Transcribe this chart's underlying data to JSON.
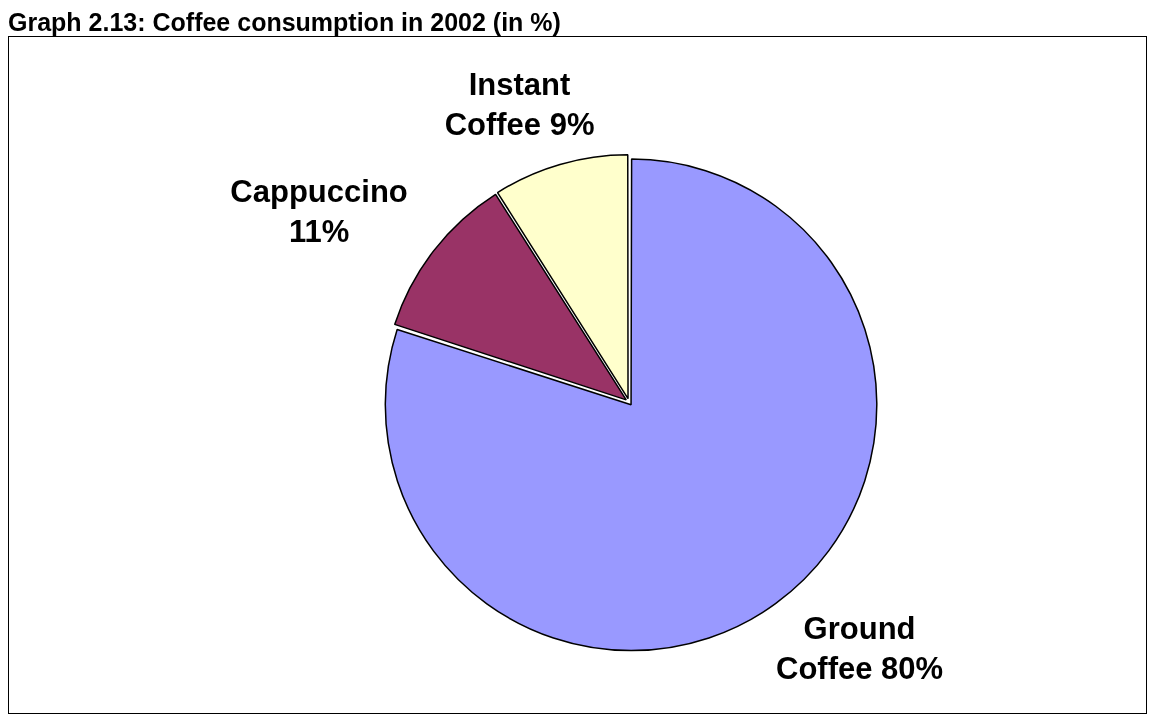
{
  "chart_data": {
    "type": "pie",
    "title": "Graph 2.13: Coffee consumption in 2002 (in %)",
    "categories": [
      "Ground Coffee",
      "Cappuccino",
      "Instant Coffee"
    ],
    "values": [
      80,
      11,
      9
    ],
    "colors": [
      "#9999ff",
      "#993366",
      "#ffffcc"
    ],
    "value_labels": [
      "80%",
      "11%",
      "9%"
    ]
  }
}
